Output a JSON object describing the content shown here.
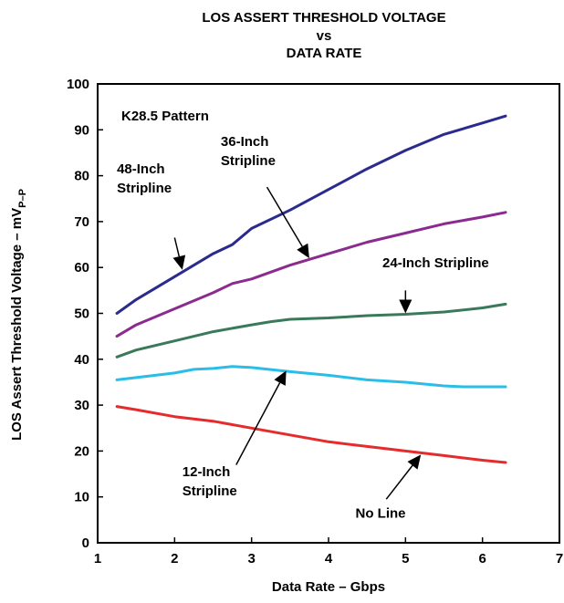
{
  "chart_data": {
    "type": "line",
    "title_lines": [
      "LOS ASSERT THRESHOLD VOLTAGE",
      "vs",
      "DATA RATE"
    ],
    "xlabel": "Data Rate – Gbps",
    "ylabel_main": "LOS Assert Threshold Voltage – mV",
    "ylabel_sub": "P–P",
    "xlim": [
      1,
      7
    ],
    "ylim": [
      0,
      100
    ],
    "x_ticks": [
      "1",
      "2",
      "3",
      "4",
      "5",
      "6",
      "7"
    ],
    "y_ticks": [
      "0",
      "10",
      "20",
      "30",
      "40",
      "50",
      "60",
      "70",
      "80",
      "90",
      "100"
    ],
    "pattern_label": "K28.5 Pattern",
    "grid": false,
    "series": [
      {
        "key": "48",
        "color": "#2b2b8f",
        "points": [
          [
            1.25,
            50
          ],
          [
            1.5,
            53
          ],
          [
            2,
            58
          ],
          [
            2.5,
            63
          ],
          [
            2.75,
            65
          ],
          [
            3,
            68.5
          ],
          [
            3.5,
            72.5
          ],
          [
            4,
            77
          ],
          [
            4.5,
            81.5
          ],
          [
            5,
            85.5
          ],
          [
            5.5,
            89
          ],
          [
            6,
            91.5
          ],
          [
            6.3,
            93
          ]
        ]
      },
      {
        "key": "36",
        "color": "#8b2b8f",
        "points": [
          [
            1.25,
            45
          ],
          [
            1.5,
            47.5
          ],
          [
            2,
            51
          ],
          [
            2.5,
            54.5
          ],
          [
            2.75,
            56.5
          ],
          [
            3,
            57.5
          ],
          [
            3.5,
            60.5
          ],
          [
            4,
            63
          ],
          [
            4.5,
            65.5
          ],
          [
            5,
            67.5
          ],
          [
            5.5,
            69.5
          ],
          [
            6,
            71
          ],
          [
            6.3,
            72
          ]
        ]
      },
      {
        "key": "24",
        "color": "#3a7a5a",
        "points": [
          [
            1.25,
            40.5
          ],
          [
            1.5,
            42
          ],
          [
            2,
            44
          ],
          [
            2.5,
            46
          ],
          [
            3,
            47.5
          ],
          [
            3.25,
            48.2
          ],
          [
            3.5,
            48.7
          ],
          [
            4,
            49
          ],
          [
            4.5,
            49.5
          ],
          [
            5,
            49.8
          ],
          [
            5.5,
            50.3
          ],
          [
            6,
            51.2
          ],
          [
            6.3,
            52
          ]
        ]
      },
      {
        "key": "12",
        "color": "#29bde8",
        "points": [
          [
            1.25,
            35.5
          ],
          [
            1.5,
            36
          ],
          [
            2,
            37
          ],
          [
            2.25,
            37.8
          ],
          [
            2.5,
            38
          ],
          [
            2.75,
            38.4
          ],
          [
            3,
            38.2
          ],
          [
            3.5,
            37.3
          ],
          [
            4,
            36.5
          ],
          [
            4.5,
            35.5
          ],
          [
            5,
            35
          ],
          [
            5.5,
            34.2
          ],
          [
            5.75,
            34
          ],
          [
            6,
            34
          ],
          [
            6.3,
            34
          ]
        ]
      },
      {
        "key": "0",
        "color": "#e52b2b",
        "points": [
          [
            1.25,
            29.7
          ],
          [
            1.5,
            29
          ],
          [
            2,
            27.5
          ],
          [
            2.5,
            26.5
          ],
          [
            3,
            25
          ],
          [
            3.5,
            23.5
          ],
          [
            4,
            22
          ],
          [
            4.5,
            21
          ],
          [
            5,
            20
          ],
          [
            5.5,
            19
          ],
          [
            6,
            18
          ],
          [
            6.3,
            17.5
          ]
        ]
      }
    ],
    "annotations": [
      {
        "key": "48",
        "lines": [
          "48-Inch",
          "Stripline"
        ],
        "label_x": 1.25,
        "label_y": 80.5,
        "arrow_from": [
          2.0,
          66.5
        ],
        "arrow_to": [
          2.1,
          59.5
        ]
      },
      {
        "key": "36",
        "lines": [
          "36-Inch",
          "Stripline"
        ],
        "label_x": 2.6,
        "label_y": 86.5,
        "arrow_from": [
          3.2,
          77.5
        ],
        "arrow_to": [
          3.75,
          62
        ]
      },
      {
        "key": "24",
        "lines": [
          "24-Inch Stripline"
        ],
        "label_x": 4.7,
        "label_y": 60,
        "arrow_from": [
          5.0,
          55
        ],
        "arrow_to": [
          5.0,
          50
        ]
      },
      {
        "key": "12",
        "lines": [
          "12-Inch",
          "Stripline"
        ],
        "label_x": 2.1,
        "label_y": 14.5,
        "arrow_from": [
          2.8,
          17
        ],
        "arrow_to": [
          3.45,
          37.5
        ]
      },
      {
        "key": "0",
        "lines": [
          "No Line"
        ],
        "label_x": 4.35,
        "label_y": 5.5,
        "arrow_from": [
          4.75,
          9.5
        ],
        "arrow_to": [
          5.2,
          19.2
        ]
      }
    ]
  }
}
